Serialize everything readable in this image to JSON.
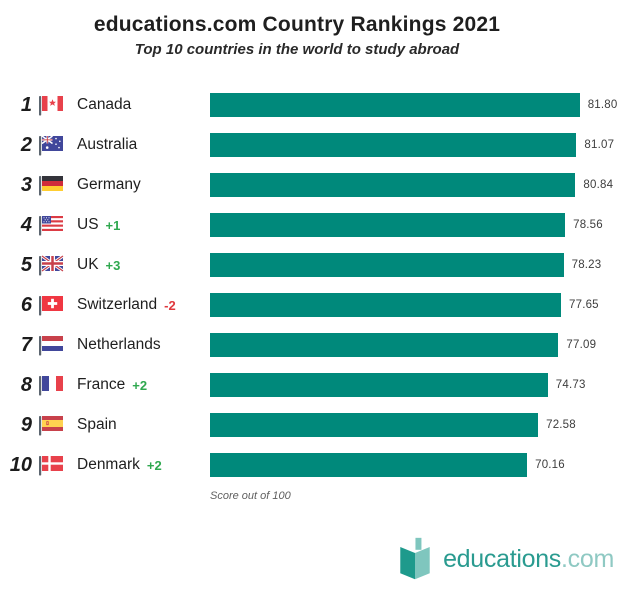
{
  "header": {
    "title": "educations.com Country Rankings 2021",
    "subtitle": "Top 10 countries in the world to study abroad"
  },
  "chart_data": {
    "type": "bar",
    "orientation": "horizontal",
    "title": "educations.com Country Rankings 2021",
    "subtitle": "Top 10 countries in the world to study abroad",
    "value_axis_label": "Score out of 100",
    "xlim": [
      0,
      100
    ],
    "bar_color": "#00897B",
    "rows": [
      {
        "rank": "1",
        "country": "Canada",
        "flag": "canada",
        "score": 81.8,
        "score_label": "81.80",
        "delta": ""
      },
      {
        "rank": "2",
        "country": "Australia",
        "flag": "australia",
        "score": 81.07,
        "score_label": "81.07",
        "delta": ""
      },
      {
        "rank": "3",
        "country": "Germany",
        "flag": "germany",
        "score": 80.84,
        "score_label": "80.84",
        "delta": ""
      },
      {
        "rank": "4",
        "country": "US",
        "flag": "us",
        "score": 78.56,
        "score_label": "78.56",
        "delta": "+1"
      },
      {
        "rank": "5",
        "country": "UK",
        "flag": "uk",
        "score": 78.23,
        "score_label": "78.23",
        "delta": "+3"
      },
      {
        "rank": "6",
        "country": "Switzerland",
        "flag": "switzerland",
        "score": 77.65,
        "score_label": "77.65",
        "delta": "-2"
      },
      {
        "rank": "7",
        "country": "Netherlands",
        "flag": "netherlands",
        "score": 77.09,
        "score_label": "77.09",
        "delta": ""
      },
      {
        "rank": "8",
        "country": "France",
        "flag": "france",
        "score": 74.73,
        "score_label": "74.73",
        "delta": "+2"
      },
      {
        "rank": "9",
        "country": "Spain",
        "flag": "spain",
        "score": 72.58,
        "score_label": "72.58",
        "delta": ""
      },
      {
        "rank": "10",
        "country": "Denmark",
        "flag": "denmark",
        "score": 70.16,
        "score_label": "70.16",
        "delta": "+2"
      }
    ]
  },
  "footer": {
    "footnote": "Score out of 100",
    "logo_text": "educations",
    "logo_suffix": ".com"
  },
  "colors": {
    "bar": "#00897B",
    "delta_up": "#2FA84F",
    "delta_down": "#E0393E",
    "logo_teal": "#2A9B90",
    "logo_light": "#8FC9C3"
  }
}
